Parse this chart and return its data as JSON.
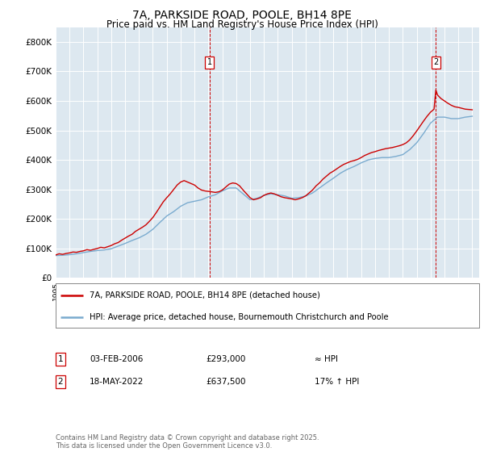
{
  "title": "7A, PARKSIDE ROAD, POOLE, BH14 8PE",
  "subtitle": "Price paid vs. HM Land Registry's House Price Index (HPI)",
  "background_color": "#dde8f0",
  "legend_line1": "7A, PARKSIDE ROAD, POOLE, BH14 8PE (detached house)",
  "legend_line2": "HPI: Average price, detached house, Bournemouth Christchurch and Poole",
  "footer": "Contains HM Land Registry data © Crown copyright and database right 2025.\nThis data is licensed under the Open Government Licence v3.0.",
  "transaction1_date": "03-FEB-2006",
  "transaction1_price": "£293,000",
  "transaction1_note": "≈ HPI",
  "transaction2_date": "18-MAY-2022",
  "transaction2_price": "£637,500",
  "transaction2_note": "17% ↑ HPI",
  "price_color": "#cc0000",
  "hpi_color": "#7aabcf",
  "marker1_x": 2006.08,
  "marker2_x": 2022.38,
  "ylim_min": 0,
  "ylim_max": 850000,
  "yticks": [
    0,
    100000,
    200000,
    300000,
    400000,
    500000,
    600000,
    700000,
    800000
  ],
  "ytick_labels": [
    "£0",
    "£100K",
    "£200K",
    "£300K",
    "£400K",
    "£500K",
    "£600K",
    "£700K",
    "£800K"
  ],
  "hpi_data": [
    [
      1995,
      76000
    ],
    [
      1995.5,
      77000
    ],
    [
      1996,
      79000
    ],
    [
      1996.5,
      82000
    ],
    [
      1997,
      86000
    ],
    [
      1997.5,
      90000
    ],
    [
      1998,
      93000
    ],
    [
      1998.5,
      95000
    ],
    [
      1999,
      99000
    ],
    [
      1999.5,
      108000
    ],
    [
      2000,
      117000
    ],
    [
      2000.5,
      127000
    ],
    [
      2001,
      136000
    ],
    [
      2001.5,
      148000
    ],
    [
      2002,
      165000
    ],
    [
      2002.5,
      188000
    ],
    [
      2003,
      210000
    ],
    [
      2003.5,
      225000
    ],
    [
      2004,
      243000
    ],
    [
      2004.5,
      255000
    ],
    [
      2005,
      260000
    ],
    [
      2005.5,
      265000
    ],
    [
      2006,
      275000
    ],
    [
      2006.5,
      282000
    ],
    [
      2007,
      295000
    ],
    [
      2007.5,
      305000
    ],
    [
      2008,
      305000
    ],
    [
      2008.5,
      285000
    ],
    [
      2009,
      265000
    ],
    [
      2009.5,
      270000
    ],
    [
      2010,
      280000
    ],
    [
      2010.5,
      285000
    ],
    [
      2011,
      282000
    ],
    [
      2011.5,
      278000
    ],
    [
      2012,
      270000
    ],
    [
      2012.5,
      272000
    ],
    [
      2013,
      278000
    ],
    [
      2013.5,
      288000
    ],
    [
      2014,
      305000
    ],
    [
      2014.5,
      322000
    ],
    [
      2015,
      338000
    ],
    [
      2015.5,
      355000
    ],
    [
      2016,
      368000
    ],
    [
      2016.5,
      378000
    ],
    [
      2017,
      390000
    ],
    [
      2017.5,
      400000
    ],
    [
      2018,
      405000
    ],
    [
      2018.5,
      408000
    ],
    [
      2019,
      408000
    ],
    [
      2019.5,
      412000
    ],
    [
      2020,
      418000
    ],
    [
      2020.5,
      435000
    ],
    [
      2021,
      458000
    ],
    [
      2021.5,
      490000
    ],
    [
      2022,
      525000
    ],
    [
      2022.5,
      545000
    ],
    [
      2023,
      545000
    ],
    [
      2023.5,
      540000
    ],
    [
      2024,
      540000
    ],
    [
      2024.5,
      545000
    ],
    [
      2025,
      548000
    ]
  ],
  "price_data": [
    [
      1995,
      78000
    ],
    [
      1995.25,
      82000
    ],
    [
      1995.5,
      80000
    ],
    [
      1995.75,
      83000
    ],
    [
      1996,
      85000
    ],
    [
      1996.25,
      88000
    ],
    [
      1996.5,
      87000
    ],
    [
      1996.75,
      90000
    ],
    [
      1997,
      92000
    ],
    [
      1997.25,
      96000
    ],
    [
      1997.5,
      94000
    ],
    [
      1997.75,
      97000
    ],
    [
      1998,
      100000
    ],
    [
      1998.25,
      104000
    ],
    [
      1998.5,
      102000
    ],
    [
      1998.75,
      106000
    ],
    [
      1999,
      110000
    ],
    [
      1999.25,
      116000
    ],
    [
      1999.5,
      120000
    ],
    [
      1999.75,
      128000
    ],
    [
      2000,
      135000
    ],
    [
      2000.25,
      142000
    ],
    [
      2000.5,
      148000
    ],
    [
      2000.75,
      158000
    ],
    [
      2001,
      165000
    ],
    [
      2001.25,
      172000
    ],
    [
      2001.5,
      180000
    ],
    [
      2001.75,
      192000
    ],
    [
      2002,
      205000
    ],
    [
      2002.25,
      222000
    ],
    [
      2002.5,
      240000
    ],
    [
      2002.75,
      258000
    ],
    [
      2003,
      272000
    ],
    [
      2003.25,
      285000
    ],
    [
      2003.5,
      300000
    ],
    [
      2003.75,
      315000
    ],
    [
      2004,
      325000
    ],
    [
      2004.25,
      330000
    ],
    [
      2004.5,
      325000
    ],
    [
      2004.75,
      320000
    ],
    [
      2005,
      315000
    ],
    [
      2005.25,
      305000
    ],
    [
      2005.5,
      298000
    ],
    [
      2005.75,
      295000
    ],
    [
      2006.08,
      293000
    ],
    [
      2006.5,
      290000
    ],
    [
      2006.75,
      292000
    ],
    [
      2007,
      298000
    ],
    [
      2007.25,
      308000
    ],
    [
      2007.5,
      318000
    ],
    [
      2007.75,
      322000
    ],
    [
      2008,
      320000
    ],
    [
      2008.25,
      312000
    ],
    [
      2008.5,
      298000
    ],
    [
      2008.75,
      285000
    ],
    [
      2009,
      272000
    ],
    [
      2009.25,
      265000
    ],
    [
      2009.5,
      268000
    ],
    [
      2009.75,
      272000
    ],
    [
      2010,
      280000
    ],
    [
      2010.25,
      285000
    ],
    [
      2010.5,
      288000
    ],
    [
      2010.75,
      285000
    ],
    [
      2011,
      280000
    ],
    [
      2011.25,
      275000
    ],
    [
      2011.5,
      272000
    ],
    [
      2011.75,
      270000
    ],
    [
      2012,
      268000
    ],
    [
      2012.25,
      265000
    ],
    [
      2012.5,
      268000
    ],
    [
      2012.75,
      272000
    ],
    [
      2013,
      278000
    ],
    [
      2013.25,
      288000
    ],
    [
      2013.5,
      298000
    ],
    [
      2013.75,
      312000
    ],
    [
      2014,
      322000
    ],
    [
      2014.25,
      335000
    ],
    [
      2014.5,
      345000
    ],
    [
      2014.75,
      355000
    ],
    [
      2015,
      362000
    ],
    [
      2015.25,
      370000
    ],
    [
      2015.5,
      378000
    ],
    [
      2015.75,
      385000
    ],
    [
      2016,
      390000
    ],
    [
      2016.25,
      395000
    ],
    [
      2016.5,
      398000
    ],
    [
      2016.75,
      402000
    ],
    [
      2017,
      408000
    ],
    [
      2017.25,
      415000
    ],
    [
      2017.5,
      420000
    ],
    [
      2017.75,
      425000
    ],
    [
      2018,
      428000
    ],
    [
      2018.25,
      432000
    ],
    [
      2018.5,
      435000
    ],
    [
      2018.75,
      438000
    ],
    [
      2019,
      440000
    ],
    [
      2019.25,
      442000
    ],
    [
      2019.5,
      445000
    ],
    [
      2019.75,
      448000
    ],
    [
      2020,
      452000
    ],
    [
      2020.25,
      458000
    ],
    [
      2020.5,
      468000
    ],
    [
      2020.75,
      482000
    ],
    [
      2021,
      498000
    ],
    [
      2021.25,
      515000
    ],
    [
      2021.5,
      532000
    ],
    [
      2021.75,
      548000
    ],
    [
      2022,
      562000
    ],
    [
      2022.25,
      572000
    ],
    [
      2022.38,
      637500
    ],
    [
      2022.5,
      620000
    ],
    [
      2022.75,
      608000
    ],
    [
      2023,
      600000
    ],
    [
      2023.25,
      592000
    ],
    [
      2023.5,
      585000
    ],
    [
      2023.75,
      580000
    ],
    [
      2024,
      578000
    ],
    [
      2024.25,
      575000
    ],
    [
      2024.5,
      572000
    ],
    [
      2025,
      570000
    ]
  ]
}
